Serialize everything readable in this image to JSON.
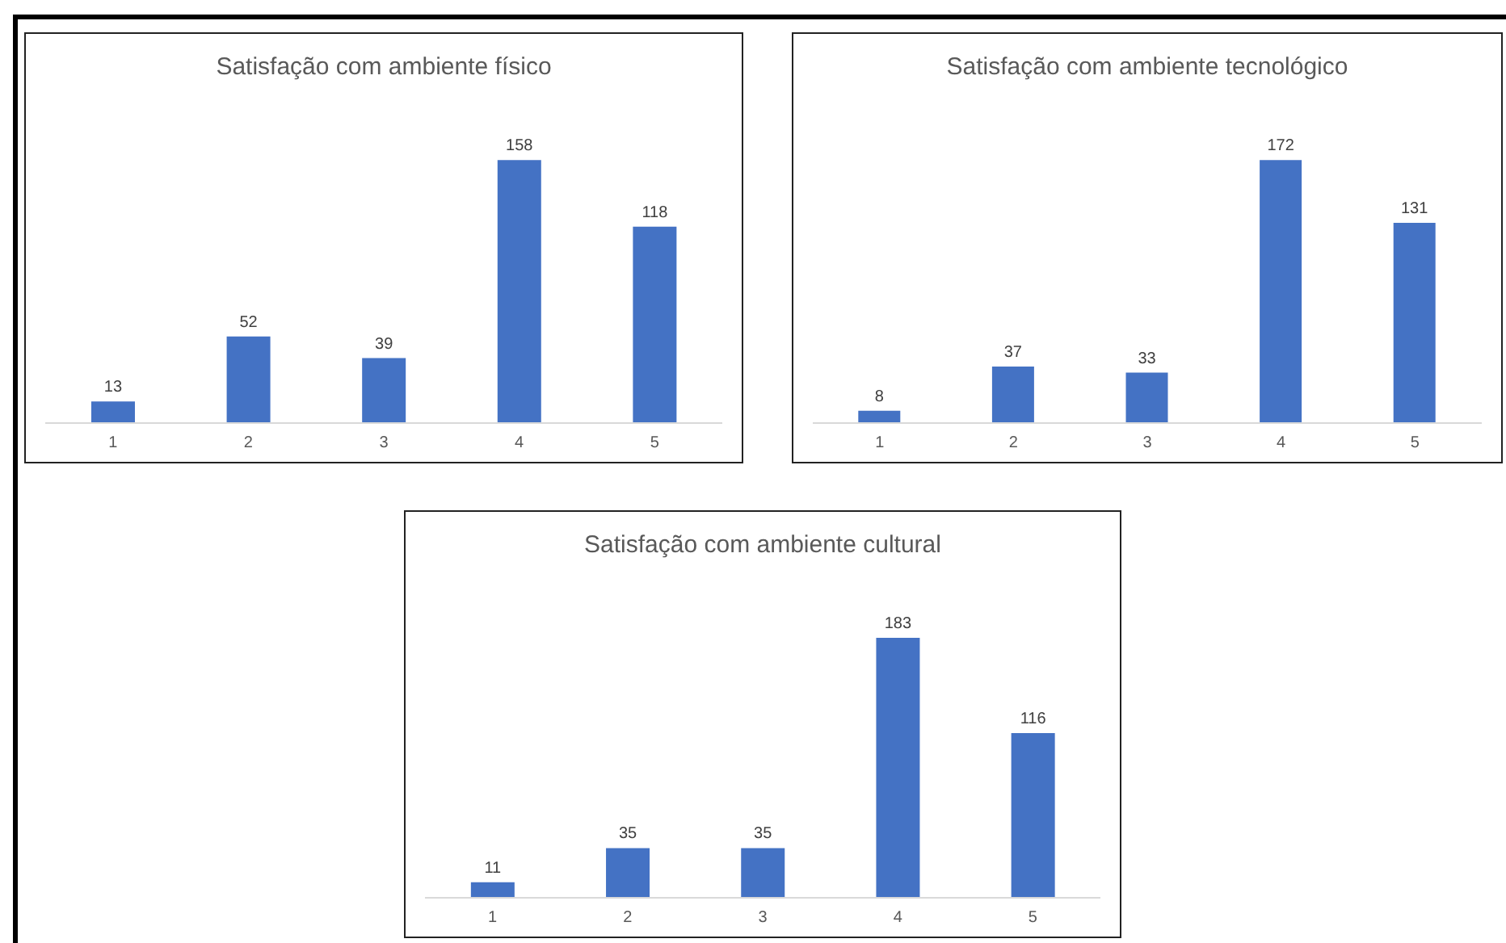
{
  "chart_data": [
    {
      "type": "bar",
      "title": "Satisfação com ambiente físico",
      "categories": [
        "1",
        "2",
        "3",
        "4",
        "5"
      ],
      "values": [
        13,
        52,
        39,
        158,
        118
      ],
      "color": "#4472c4",
      "data_labels": true
    },
    {
      "type": "bar",
      "title": "Satisfação com ambiente tecnológico",
      "categories": [
        "1",
        "2",
        "3",
        "4",
        "5"
      ],
      "values": [
        8,
        37,
        33,
        172,
        131
      ],
      "color": "#4472c4",
      "data_labels": true
    },
    {
      "type": "bar",
      "title": "Satisfação com ambiente cultural",
      "categories": [
        "1",
        "2",
        "3",
        "4",
        "5"
      ],
      "values": [
        11,
        35,
        35,
        183,
        116
      ],
      "color": "#4472c4",
      "data_labels": true
    }
  ]
}
